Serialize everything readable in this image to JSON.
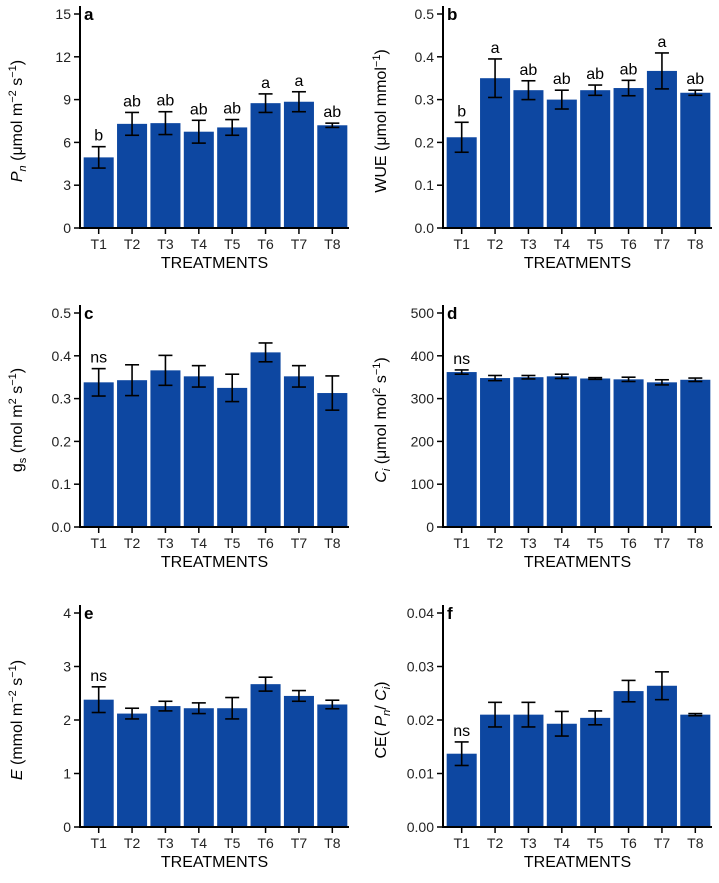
{
  "chart_data": [
    {
      "panel": "a",
      "type": "bar",
      "categories": [
        "T1",
        "T2",
        "T3",
        "T4",
        "T5",
        "T6",
        "T7",
        "T8"
      ],
      "values": [
        4.95,
        7.3,
        7.35,
        6.75,
        7.05,
        8.75,
        8.85,
        7.2
      ],
      "errors": [
        0.75,
        0.8,
        0.8,
        0.8,
        0.55,
        0.65,
        0.7,
        0.15
      ],
      "labels": [
        "b",
        "ab",
        "ab",
        "ab",
        "ab",
        "a",
        "a",
        "ab"
      ],
      "ylim": [
        0,
        15
      ],
      "yticks": [
        "0",
        "3",
        "6",
        "9",
        "12",
        "15"
      ],
      "xlabel": "TREATMENTS",
      "ylabel": {
        "pre": "",
        "main": "P",
        "sub": "n",
        "post": " (μmol m",
        "sup1": "−2",
        "mid": " s",
        "sup2": "−1",
        "end": ")"
      }
    },
    {
      "panel": "b",
      "type": "bar",
      "categories": [
        "T1",
        "T2",
        "T3",
        "T4",
        "T5",
        "T6",
        "T7",
        "T8"
      ],
      "values": [
        0.212,
        0.35,
        0.322,
        0.3,
        0.322,
        0.327,
        0.367,
        0.316
      ],
      "errors": [
        0.035,
        0.045,
        0.022,
        0.022,
        0.012,
        0.018,
        0.042,
        0.006
      ],
      "labels": [
        "b",
        "a",
        "ab",
        "ab",
        "ab",
        "ab",
        "a",
        "ab"
      ],
      "ylim": [
        0,
        0.5
      ],
      "yticks": [
        "0.0",
        "0.1",
        "0.2",
        "0.3",
        "0.4",
        "0.5"
      ],
      "xlabel": "TREATMENTS",
      "ylabel": {
        "pre": "WUE (μmol mmol",
        "sup1": "−1",
        "end": ")"
      }
    },
    {
      "panel": "c",
      "type": "bar",
      "categories": [
        "T1",
        "T2",
        "T3",
        "T4",
        "T5",
        "T6",
        "T7",
        "T8"
      ],
      "values": [
        0.338,
        0.343,
        0.366,
        0.352,
        0.325,
        0.408,
        0.352,
        0.313
      ],
      "errors": [
        0.032,
        0.036,
        0.035,
        0.025,
        0.032,
        0.022,
        0.025,
        0.04
      ],
      "labels": [
        "ns",
        "",
        "",
        "",
        "",
        "",
        "",
        ""
      ],
      "ylim": [
        0,
        0.5
      ],
      "yticks": [
        "0.0",
        "0.1",
        "0.2",
        "0.3",
        "0.4",
        "0.5"
      ],
      "xlabel": "TREATMENTS",
      "ylabel": {
        "pre": "g",
        "sub": "s",
        "post": " (mol m",
        "sup1": "2",
        "mid": " s",
        "sup2": "−1",
        "end": ")"
      }
    },
    {
      "panel": "d",
      "type": "bar",
      "categories": [
        "T1",
        "T2",
        "T3",
        "T4",
        "T5",
        "T6",
        "T7",
        "T8"
      ],
      "values": [
        362,
        348,
        350,
        352,
        347,
        345,
        338,
        344
      ],
      "errors": [
        5,
        6,
        4,
        5,
        2,
        5,
        6,
        4
      ],
      "labels": [
        "ns",
        "",
        "",
        "",
        "",
        "",
        "",
        ""
      ],
      "ylim": [
        0,
        500
      ],
      "yticks": [
        "0",
        "100",
        "200",
        "300",
        "400",
        "500"
      ],
      "xlabel": "TREATMENTS",
      "ylabel": {
        "pre": "",
        "main": "C",
        "sub": "i",
        "post": " (μmol mol",
        "sup1": "2",
        "mid": " s",
        "sup2": "−1",
        "end": ")"
      }
    },
    {
      "panel": "e",
      "type": "bar",
      "categories": [
        "T1",
        "T2",
        "T3",
        "T4",
        "T5",
        "T6",
        "T7",
        "T8"
      ],
      "values": [
        2.38,
        2.12,
        2.26,
        2.22,
        2.22,
        2.67,
        2.45,
        2.29
      ],
      "errors": [
        0.24,
        0.1,
        0.09,
        0.1,
        0.2,
        0.13,
        0.1,
        0.08
      ],
      "labels": [
        "ns",
        "",
        "",
        "",
        "",
        "",
        "",
        ""
      ],
      "ylim": [
        0,
        4
      ],
      "yticks": [
        "0",
        "1",
        "2",
        "3",
        "4"
      ],
      "xlabel": "TREATMENTS",
      "ylabel": {
        "pre": "",
        "main": "E",
        "post": " (mmol m",
        "sup1": "−2",
        "mid": " s",
        "sup2": "−1",
        "end": ")"
      }
    },
    {
      "panel": "f",
      "type": "bar",
      "categories": [
        "T1",
        "T2",
        "T3",
        "T4",
        "T5",
        "T6",
        "T7",
        "T8"
      ],
      "values": [
        0.0137,
        0.021,
        0.021,
        0.0193,
        0.0204,
        0.0254,
        0.0264,
        0.021
      ],
      "errors": [
        0.0022,
        0.0023,
        0.0023,
        0.0023,
        0.0013,
        0.002,
        0.0026,
        0.0002
      ],
      "labels": [
        "ns",
        "",
        "",
        "",
        "",
        "",
        "",
        ""
      ],
      "ylim": [
        0,
        0.04
      ],
      "yticks": [
        "0.00",
        "0.01",
        "0.02",
        "0.03",
        "0.04"
      ],
      "xlabel": "TREATMENTS",
      "ylabel": {
        "pre": "CE( ",
        "main": "P",
        "sub": "n",
        "post": "/ ",
        "main2": "C",
        "sub2": "i",
        "end": ")"
      }
    }
  ]
}
